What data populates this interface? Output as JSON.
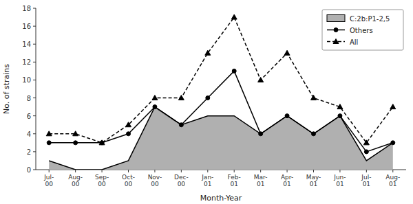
{
  "chart_data": {
    "type": "line",
    "categories": [
      "Jul-\n00",
      "Aug-\n00",
      "Sep-\n00",
      "Oct-\n00",
      "Nov-\n00",
      "Dec-\n00",
      "Jan-\n01",
      "Feb-\n01",
      "Mar-\n01",
      "Apr-\n01",
      "May-\n01",
      "Jun-\n01",
      "Jul-\n01",
      "Aug-\n01"
    ],
    "series": [
      {
        "name": "C:2b:P1-2,5",
        "type": "area",
        "color": "#b0b0b0",
        "values": [
          1,
          0,
          0,
          1,
          7,
          5,
          6,
          6,
          4,
          6,
          4,
          6,
          1,
          3
        ]
      },
      {
        "name": "Others",
        "type": "line",
        "color": "#000000",
        "marker": "circle",
        "line_style": "solid",
        "values": [
          3,
          3,
          3,
          4,
          7,
          5,
          8,
          11,
          4,
          6,
          4,
          6,
          2,
          3
        ]
      },
      {
        "name": "All",
        "type": "line",
        "color": "#000000",
        "marker": "triangle",
        "line_style": "dashed",
        "values": [
          4,
          4,
          3,
          5,
          8,
          8,
          13,
          17,
          10,
          13,
          8,
          7,
          3,
          7
        ]
      }
    ],
    "xlabel": "Month-Year",
    "ylabel": "No. of strains",
    "ylim": [
      0,
      18
    ],
    "yticks": [
      0,
      2,
      4,
      6,
      8,
      10,
      12,
      14,
      16,
      18
    ],
    "grid": false,
    "legend": "upper right"
  }
}
